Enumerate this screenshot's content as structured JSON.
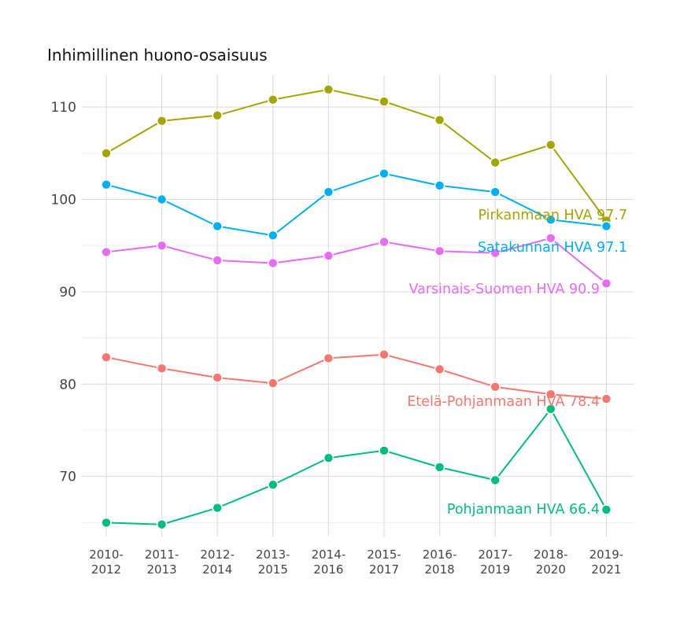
{
  "chart_data": {
    "type": "line",
    "title": "Inhimillinen huono-osaisuus",
    "xlabel": "",
    "ylabel": "",
    "categories": [
      "2010-2012",
      "2011-2013",
      "2012-2014",
      "2013-2015",
      "2014-2016",
      "2015-2017",
      "2016-2018",
      "2017-2019",
      "2018-2020",
      "2019-2021"
    ],
    "category_lines": [
      [
        "2010-",
        "2012"
      ],
      [
        "2011-",
        "2013"
      ],
      [
        "2012-",
        "2014"
      ],
      [
        "2013-",
        "2015"
      ],
      [
        "2014-",
        "2016"
      ],
      [
        "2015-",
        "2017"
      ],
      [
        "2016-",
        "2018"
      ],
      [
        "2017-",
        "2019"
      ],
      [
        "2018-",
        "2020"
      ],
      [
        "2019-",
        "2021"
      ]
    ],
    "ylim": [
      63.5,
      113.5
    ],
    "yticks": [
      70,
      80,
      90,
      100,
      110
    ],
    "ytick_labels": [
      "70",
      "80",
      "90",
      "100",
      "110"
    ],
    "minor_yticks": [
      65,
      75,
      85,
      95,
      105
    ],
    "grid": true,
    "legend": "direct labels at line ends",
    "series": [
      {
        "name": "Pirkanmaan HVA",
        "label": "Pirkanmaan HVA 97.7",
        "color": "#a3a500",
        "values": [
          105.0,
          108.5,
          109.1,
          110.8,
          111.9,
          110.6,
          108.6,
          104.0,
          105.9,
          97.7
        ]
      },
      {
        "name": "Satakunnan HVA",
        "label": "Satakunnan HVA 97.1",
        "color": "#00b0f6",
        "values": [
          101.6,
          100.0,
          97.1,
          96.1,
          100.8,
          102.8,
          101.5,
          100.8,
          97.8,
          97.1
        ]
      },
      {
        "name": "Varsinais-Suomen HVA",
        "label": "Varsinais-Suomen HVA 90.9",
        "color": "#e76bf3",
        "values": [
          94.3,
          95.0,
          93.4,
          93.1,
          93.9,
          95.4,
          94.4,
          94.2,
          95.8,
          90.9
        ]
      },
      {
        "name": "Etelä-Pohjanmaan HVA",
        "label": "Etelä-Pohjanmaan HVA 78.4",
        "color": "#f8766d",
        "values": [
          82.9,
          81.7,
          80.7,
          80.1,
          82.8,
          83.2,
          81.6,
          79.7,
          78.9,
          78.4
        ]
      },
      {
        "name": "Pohjanmaan HVA",
        "label": "Pohjanmaan HVA 66.4",
        "color": "#00bf7d",
        "values": [
          65.0,
          64.8,
          66.6,
          69.1,
          72.0,
          72.8,
          71.0,
          69.6,
          77.3,
          66.4
        ]
      }
    ]
  }
}
